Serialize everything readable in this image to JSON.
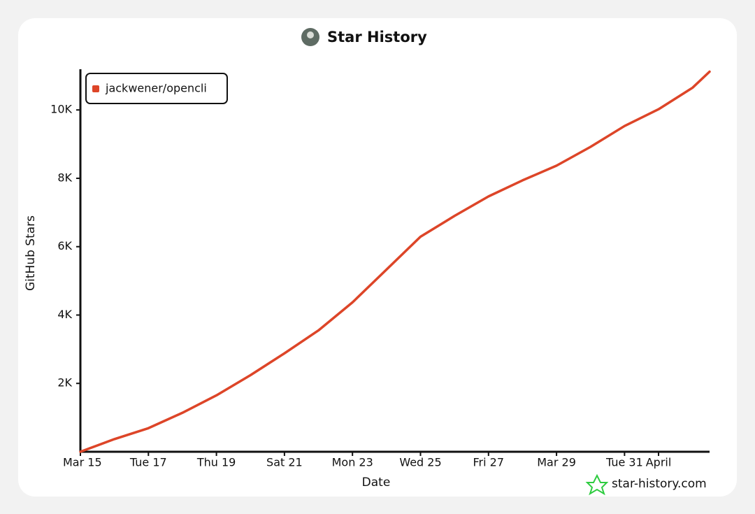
{
  "chart_data": {
    "type": "line",
    "title": "Star History",
    "xlabel": "Date",
    "ylabel": "GitHub Stars",
    "watermark": "star-history.com",
    "x": [
      15,
      16,
      17,
      18,
      19,
      20,
      21,
      22,
      23,
      24,
      25,
      26,
      27,
      28,
      29,
      30,
      31,
      32,
      33,
      33.5
    ],
    "series": [
      {
        "name": "jackwener/opencli",
        "color": "#dd4528",
        "values": [
          0,
          370,
          690,
          1140,
          1650,
          2240,
          2880,
          3550,
          4370,
          5330,
          6290,
          6900,
          7470,
          7940,
          8370,
          8920,
          9530,
          10020,
          10650,
          11120
        ]
      }
    ],
    "xlim": [
      15,
      33.5
    ],
    "xticks": [
      {
        "value": 15,
        "label": "Mar 15"
      },
      {
        "value": 17,
        "label": "Tue 17"
      },
      {
        "value": 19,
        "label": "Thu 19"
      },
      {
        "value": 21,
        "label": "Sat 21"
      },
      {
        "value": 23,
        "label": "Mon 23"
      },
      {
        "value": 25,
        "label": "Wed 25"
      },
      {
        "value": 27,
        "label": "Fri 27"
      },
      {
        "value": 29,
        "label": "Mar 29"
      },
      {
        "value": 31,
        "label": "Tue 31"
      },
      {
        "value": 32,
        "label": "April"
      }
    ],
    "ylim": [
      0,
      11150
    ],
    "yticks": [
      {
        "value": 2000,
        "label": "2K"
      },
      {
        "value": 4000,
        "label": "4K"
      },
      {
        "value": 6000,
        "label": "6K"
      },
      {
        "value": 8000,
        "label": "8K"
      },
      {
        "value": 10000,
        "label": "10K"
      }
    ],
    "legend": "top-left",
    "grid": false
  }
}
